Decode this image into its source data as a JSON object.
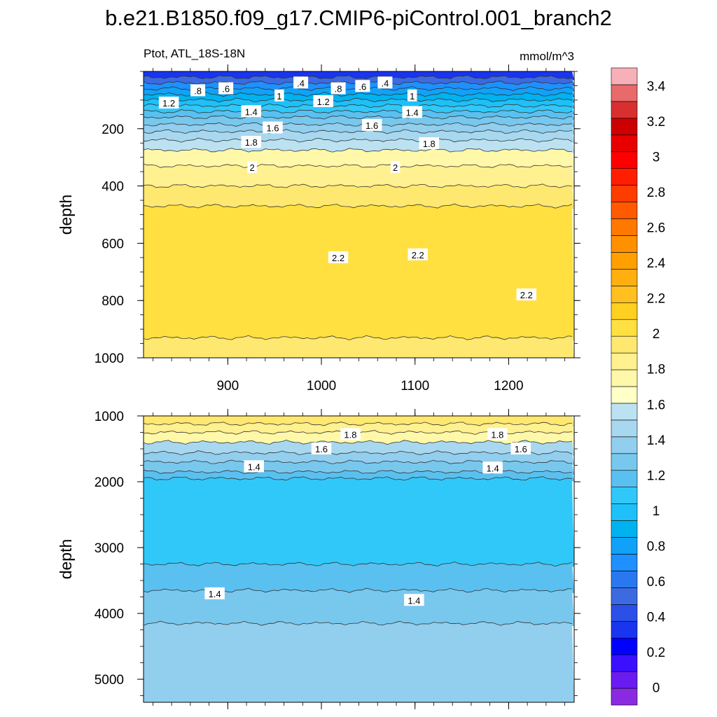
{
  "title": "b.e21.B1850.f09_g17.CMIP6-piControl.001_branch2",
  "subtitle_left": "Ptot, ATL_18S-18N",
  "subtitle_right": "mmol/m^3",
  "colorbar": {
    "labels": [
      "0",
      "0.2",
      "0.4",
      "0.6",
      "0.8",
      "1",
      "1.2",
      "1.4",
      "1.6",
      "1.8",
      "2",
      "2.2",
      "2.4",
      "2.6",
      "2.8",
      "3",
      "3.2",
      "3.4"
    ],
    "colors": [
      "#8a2be2",
      "#6a1bf0",
      "#3a10ff",
      "#0000ff",
      "#1a35f0",
      "#2b50e8",
      "#3c6ae0",
      "#2a78f0",
      "#1e90ff",
      "#10a2f8",
      "#00b2f0",
      "#1ec0f8",
      "#30c8f8",
      "#5ac0f0",
      "#78c8ee",
      "#92ceee",
      "#a8d8f0",
      "#bce2f2",
      "#ffffc8",
      "#fff8a8",
      "#fff090",
      "#ffe870",
      "#ffe040",
      "#ffd020",
      "#ffc020",
      "#ffb010",
      "#ffa000",
      "#ff9000",
      "#ff7800",
      "#ff5a00",
      "#ff3c00",
      "#ff1e00",
      "#ff0000",
      "#e80000",
      "#cc0000",
      "#d83030",
      "#e86a6a",
      "#f8b0b8"
    ]
  },
  "chart_data": [
    {
      "type": "heatmap",
      "panel": "upper",
      "ylabel": "depth",
      "xlim": [
        810,
        1270
      ],
      "ylim": [
        1000,
        0
      ],
      "xticks": [
        "900",
        "1000",
        "1100",
        "1200"
      ],
      "yticks": [
        "200",
        "400",
        "600",
        "800",
        "1000"
      ],
      "ytick_values": [
        200,
        400,
        600,
        800,
        1000
      ],
      "xtick_values": [
        900,
        1000,
        1100,
        1200
      ],
      "bands": [
        {
          "top": 0,
          "bottom": 20,
          "value": 0.4
        },
        {
          "top": 20,
          "bottom": 40,
          "value": 0.6
        },
        {
          "top": 40,
          "bottom": 60,
          "value": 0.8
        },
        {
          "top": 60,
          "bottom": 80,
          "value": 0.9
        },
        {
          "top": 80,
          "bottom": 100,
          "value": 1.0
        },
        {
          "top": 100,
          "bottom": 120,
          "value": 1.1
        },
        {
          "top": 120,
          "bottom": 140,
          "value": 1.2
        },
        {
          "top": 140,
          "bottom": 160,
          "value": 1.3
        },
        {
          "top": 160,
          "bottom": 185,
          "value": 1.4
        },
        {
          "top": 185,
          "bottom": 210,
          "value": 1.5
        },
        {
          "top": 210,
          "bottom": 240,
          "value": 1.6
        },
        {
          "top": 240,
          "bottom": 275,
          "value": 1.7
        },
        {
          "top": 275,
          "bottom": 330,
          "value": 1.8
        },
        {
          "top": 330,
          "bottom": 400,
          "value": 1.9
        },
        {
          "top": 400,
          "bottom": 470,
          "value": 2.0
        },
        {
          "top": 470,
          "bottom": 930,
          "value": 2.1
        },
        {
          "top": 930,
          "bottom": 1000,
          "value": 2.0
        }
      ],
      "contour_labels": [
        {
          "x": 898,
          "y": 60,
          "text": ".6"
        },
        {
          "x": 1018,
          "y": 60,
          "text": ".8"
        },
        {
          "x": 1044,
          "y": 52,
          "text": ".6"
        },
        {
          "x": 1068,
          "y": 40,
          "text": ".4"
        },
        {
          "x": 978,
          "y": 40,
          "text": ".4"
        },
        {
          "x": 868,
          "y": 67,
          "text": ".8"
        },
        {
          "x": 837,
          "y": 110,
          "text": "1.2"
        },
        {
          "x": 1002,
          "y": 105,
          "text": "1.2"
        },
        {
          "x": 955,
          "y": 85,
          "text": "1"
        },
        {
          "x": 1097,
          "y": 85,
          "text": "1"
        },
        {
          "x": 925,
          "y": 140,
          "text": "1.4"
        },
        {
          "x": 1097,
          "y": 143,
          "text": "1.4"
        },
        {
          "x": 948,
          "y": 197,
          "text": "1.6"
        },
        {
          "x": 1054,
          "y": 188,
          "text": "1.6"
        },
        {
          "x": 925,
          "y": 247,
          "text": "1.8"
        },
        {
          "x": 1115,
          "y": 252,
          "text": "1.8"
        },
        {
          "x": 926,
          "y": 335,
          "text": "2"
        },
        {
          "x": 1079,
          "y": 335,
          "text": "2"
        },
        {
          "x": 1018,
          "y": 650,
          "text": "2.2"
        },
        {
          "x": 1103,
          "y": 640,
          "text": "2.2"
        },
        {
          "x": 1219,
          "y": 780,
          "text": "2.2"
        }
      ]
    },
    {
      "type": "heatmap",
      "panel": "lower",
      "ylabel": "depth",
      "xlim": [
        810,
        1270
      ],
      "ylim": [
        5350,
        1000
      ],
      "yticks": [
        "1000",
        "2000",
        "3000",
        "4000",
        "5000"
      ],
      "ytick_values": [
        1000,
        2000,
        3000,
        4000,
        5000
      ],
      "xtick_values": [
        900,
        1000,
        1100,
        1200
      ],
      "bands": [
        {
          "top": 1000,
          "bottom": 1120,
          "value": 2.0
        },
        {
          "top": 1120,
          "bottom": 1250,
          "value": 1.9
        },
        {
          "top": 1250,
          "bottom": 1400,
          "value": 1.8
        },
        {
          "top": 1400,
          "bottom": 1560,
          "value": 1.6
        },
        {
          "top": 1560,
          "bottom": 1700,
          "value": 1.5
        },
        {
          "top": 1700,
          "bottom": 1850,
          "value": 1.4
        },
        {
          "top": 1850,
          "bottom": 1950,
          "value": 1.3
        },
        {
          "top": 1950,
          "bottom": 3250,
          "value": 1.2
        },
        {
          "top": 3250,
          "bottom": 3650,
          "value": 1.3
        },
        {
          "top": 3650,
          "bottom": 4150,
          "value": 1.4
        },
        {
          "top": 4150,
          "bottom": 5350,
          "value": 1.5
        }
      ],
      "contour_labels": [
        {
          "x": 1031,
          "y": 1280,
          "text": "1.8"
        },
        {
          "x": 1188,
          "y": 1280,
          "text": "1.8"
        },
        {
          "x": 1000,
          "y": 1500,
          "text": "1.6"
        },
        {
          "x": 1213,
          "y": 1500,
          "text": "1.6"
        },
        {
          "x": 928,
          "y": 1770,
          "text": "1.4"
        },
        {
          "x": 1183,
          "y": 1790,
          "text": "1.4"
        },
        {
          "x": 886,
          "y": 3700,
          "text": "1.4"
        },
        {
          "x": 1099,
          "y": 3800,
          "text": "1.4"
        }
      ]
    }
  ]
}
